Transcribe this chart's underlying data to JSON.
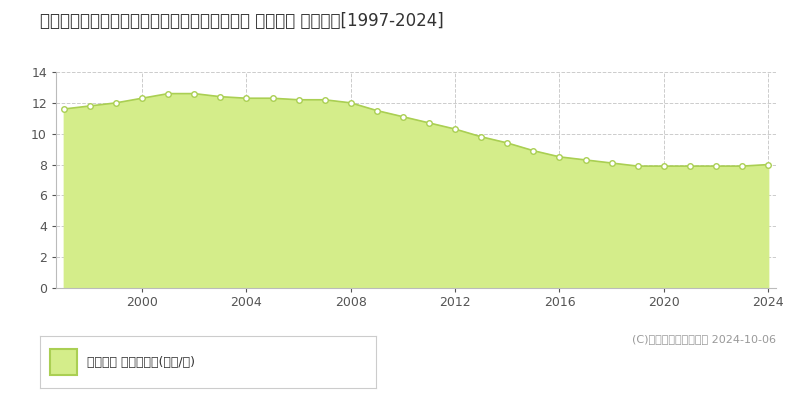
{
  "title": "岩手県胆沢郡金ケ崎町西根西地蔵野３８番４内 基準地価 地価推移[1997-2024]",
  "years": [
    1997,
    1998,
    1999,
    2000,
    2001,
    2002,
    2003,
    2004,
    2005,
    2006,
    2007,
    2008,
    2009,
    2010,
    2011,
    2012,
    2013,
    2014,
    2015,
    2016,
    2017,
    2018,
    2019,
    2020,
    2021,
    2022,
    2023,
    2024
  ],
  "values": [
    11.6,
    11.8,
    12.0,
    12.3,
    12.6,
    12.6,
    12.4,
    12.3,
    12.3,
    12.2,
    12.2,
    12.0,
    11.5,
    11.1,
    10.7,
    10.3,
    9.8,
    9.4,
    8.9,
    8.5,
    8.3,
    8.1,
    7.9,
    7.9,
    7.9,
    7.9,
    7.9,
    8.0
  ],
  "line_color": "#aacf53",
  "fill_color": "#d4ed8a",
  "marker_color": "#ffffff",
  "marker_edge_color": "#aacf53",
  "background_color": "#ffffff",
  "grid_color": "#cccccc",
  "ylim": [
    0,
    14
  ],
  "yticks": [
    0,
    2,
    4,
    6,
    8,
    10,
    12,
    14
  ],
  "xticks": [
    2000,
    2004,
    2008,
    2012,
    2016,
    2020,
    2024
  ],
  "legend_label": "基準地価 平均坪単価(万円/坪)",
  "copyright_text": "(C)土地価格ドットコム 2024-10-06",
  "title_fontsize": 12,
  "tick_fontsize": 9,
  "legend_fontsize": 9,
  "copyright_fontsize": 8
}
